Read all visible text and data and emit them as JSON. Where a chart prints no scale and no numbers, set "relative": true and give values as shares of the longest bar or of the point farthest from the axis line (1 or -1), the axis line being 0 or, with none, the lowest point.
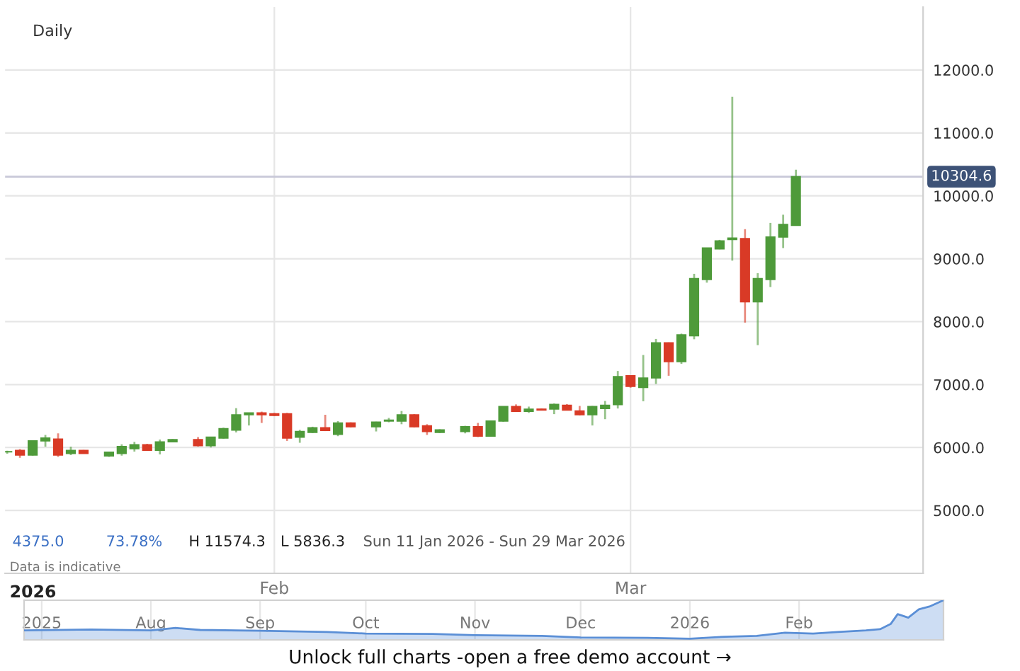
{
  "chart_data": [
    {
      "type": "candlestick",
      "title": "Daily",
      "x": [
        "2026-01-11",
        "2026-01-12",
        "2026-01-13",
        "2026-01-14",
        "2026-01-15",
        "2026-01-16",
        "2026-01-17",
        "2026-01-19",
        "2026-01-20",
        "2026-01-21",
        "2026-01-22",
        "2026-01-23",
        "2026-01-24",
        "2026-01-26",
        "2026-01-27",
        "2026-01-28",
        "2026-01-29",
        "2026-01-30",
        "2026-01-31",
        "2026-02-01",
        "2026-02-02",
        "2026-02-03",
        "2026-02-04",
        "2026-02-05",
        "2026-02-06",
        "2026-02-07",
        "2026-02-09",
        "2026-02-10",
        "2026-02-11",
        "2026-02-12",
        "2026-02-13",
        "2026-02-14",
        "2026-02-16",
        "2026-02-17",
        "2026-02-18",
        "2026-02-19",
        "2026-02-20",
        "2026-02-21",
        "2026-02-22",
        "2026-02-23",
        "2026-02-24",
        "2026-02-25",
        "2026-02-26",
        "2026-02-27",
        "2026-02-28",
        "2026-03-01",
        "2026-03-02",
        "2026-03-03",
        "2026-03-04",
        "2026-03-05",
        "2026-03-06",
        "2026-03-07",
        "2026-03-08",
        "2026-03-09",
        "2026-03-10",
        "2026-03-11",
        "2026-03-12",
        "2026-03-13",
        "2026-03-14"
      ],
      "ohlc": [
        [
          5929.6,
          5950,
          5900,
          5935
        ],
        [
          5955,
          5975,
          5836.3,
          5880
        ],
        [
          5880,
          6110,
          5870,
          6105
        ],
        [
          6105,
          6200,
          6015,
          6150
        ],
        [
          6135,
          6225,
          5850,
          5880
        ],
        [
          5905,
          6015,
          5880,
          5955
        ],
        [
          5955,
          5960,
          5900,
          5905
        ],
        [
          5865,
          5935,
          5850,
          5925
        ],
        [
          5905,
          6050,
          5870,
          6015
        ],
        [
          5980,
          6090,
          5935,
          6045
        ],
        [
          6045,
          6060,
          5950,
          5955
        ],
        [
          5955,
          6125,
          5890,
          6090
        ],
        [
          6090,
          6135,
          6085,
          6125
        ],
        [
          6125,
          6165,
          6015,
          6030
        ],
        [
          6030,
          6165,
          6000,
          6165
        ],
        [
          6150,
          6315,
          6140,
          6300
        ],
        [
          6275,
          6625,
          6240,
          6520
        ],
        [
          6520,
          6550,
          6350,
          6550
        ],
        [
          6550,
          6570,
          6390,
          6520
        ],
        [
          6535,
          6550,
          6500,
          6510
        ],
        [
          6535,
          6550,
          6105,
          6150
        ],
        [
          6165,
          6280,
          6075,
          6255
        ],
        [
          6240,
          6330,
          6230,
          6315
        ],
        [
          6315,
          6520,
          6260,
          6270
        ],
        [
          6210,
          6420,
          6180,
          6390
        ],
        [
          6390,
          6400,
          6320,
          6330
        ],
        [
          6330,
          6410,
          6255,
          6405
        ],
        [
          6420,
          6470,
          6400,
          6435
        ],
        [
          6420,
          6580,
          6370,
          6520
        ],
        [
          6520,
          6530,
          6320,
          6330
        ],
        [
          6345,
          6370,
          6200,
          6255
        ],
        [
          6240,
          6290,
          6230,
          6280
        ],
        [
          6255,
          6345,
          6225,
          6330
        ],
        [
          6330,
          6390,
          6165,
          6180
        ],
        [
          6180,
          6420,
          6170,
          6420
        ],
        [
          6420,
          6650,
          6410,
          6650
        ],
        [
          6650,
          6685,
          6570,
          6575
        ],
        [
          6575,
          6650,
          6550,
          6610
        ],
        [
          6610,
          6620,
          6590,
          6595
        ],
        [
          6610,
          6700,
          6530,
          6685
        ],
        [
          6670,
          6690,
          6590,
          6595
        ],
        [
          6580,
          6660,
          6510,
          6520
        ],
        [
          6520,
          6660,
          6350,
          6650
        ],
        [
          6620,
          6740,
          6450,
          6670
        ],
        [
          6680,
          7216,
          6620,
          7127
        ],
        [
          7142,
          7150,
          6950,
          6970
        ],
        [
          6955,
          7470,
          6735,
          7105
        ],
        [
          7105,
          7725,
          7010,
          7665
        ],
        [
          7665,
          7670,
          7140,
          7365
        ],
        [
          7365,
          7810,
          7330,
          7790
        ],
        [
          7775,
          8760,
          7720,
          8685
        ],
        [
          8670,
          9170,
          8620,
          9170
        ],
        [
          9155,
          9300,
          9150,
          9285
        ],
        [
          9305,
          11574.3,
          8970,
          9330
        ],
        [
          9320,
          9470,
          7985,
          8315
        ],
        [
          8315,
          8770,
          7627,
          8685
        ],
        [
          8670,
          9570,
          8550,
          9345
        ],
        [
          9345,
          9700,
          9170,
          9545
        ],
        [
          9530,
          10415,
          9530,
          10304.6
        ]
      ],
      "colors": [
        "#4e9a3a",
        "#d93a26",
        "#4e9a3a",
        "#4e9a3a",
        "#d93a26",
        "#4e9a3a",
        "#d93a26",
        "#4e9a3a",
        "#4e9a3a",
        "#4e9a3a",
        "#d93a26",
        "#4e9a3a",
        "#4e9a3a",
        "#d93a26",
        "#4e9a3a",
        "#4e9a3a",
        "#4e9a3a",
        "#4e9a3a",
        "#d93a26",
        "#d93a26",
        "#d93a26",
        "#4e9a3a",
        "#4e9a3a",
        "#d93a26",
        "#4e9a3a",
        "#d93a26",
        "#4e9a3a",
        "#4e9a3a",
        "#4e9a3a",
        "#d93a26",
        "#d93a26",
        "#4e9a3a",
        "#4e9a3a",
        "#d93a26",
        "#4e9a3a",
        "#4e9a3a",
        "#d93a26",
        "#4e9a3a",
        "#d93a26",
        "#4e9a3a",
        "#d93a26",
        "#d93a26",
        "#4e9a3a",
        "#4e9a3a",
        "#4e9a3a",
        "#d93a26",
        "#4e9a3a",
        "#4e9a3a",
        "#d93a26",
        "#4e9a3a",
        "#4e9a3a",
        "#4e9a3a",
        "#4e9a3a",
        "#4e9a3a",
        "#d93a26",
        "#4e9a3a",
        "#4e9a3a",
        "#4e9a3a",
        "#4e9a3a"
      ],
      "xlim": [
        "2026-01-10T20:00",
        "2026-03-24"
      ],
      "xticks": [
        {
          "value": "2026-02-01",
          "label": "Feb"
        },
        {
          "value": "2026-03-01",
          "label": "Mar"
        }
      ],
      "ylim": [
        4000,
        13000
      ],
      "yticks": [
        {
          "value": 5000,
          "label": "5000.0"
        },
        {
          "value": 6000,
          "label": "6000.0"
        },
        {
          "value": 7000,
          "label": "7000.0"
        },
        {
          "value": 8000,
          "label": "8000.0"
        },
        {
          "value": 9000,
          "label": "9000.0"
        },
        {
          "value": 10000,
          "label": "10000.0"
        },
        {
          "value": 11000,
          "label": "11000.0"
        },
        {
          "value": 12000,
          "label": "12000.0"
        }
      ],
      "grid": true,
      "ref_lines": [
        {
          "axis": "y",
          "value": 10304.6,
          "label": "10304.6",
          "color": "#c8c8d8"
        }
      ],
      "annotations": [
        "4375.0",
        "73.78%",
        "H 11574.3",
        "L 5836.3",
        "Sun 11 Jan 2026 - Sun 29 Mar 2026",
        "Data is indicative",
        "2026"
      ]
    },
    {
      "type": "area",
      "relative": true,
      "color": "#5b8fd6",
      "x": [
        "2025-06-26",
        "2025-07-15",
        "2025-08-01",
        "2025-08-08",
        "2025-08-15",
        "2025-09-01",
        "2025-09-20",
        "2025-10-01",
        "2025-10-20",
        "2025-11-01",
        "2025-11-20",
        "2025-12-01",
        "2025-12-20",
        "2026-01-01",
        "2026-01-11",
        "2026-01-20",
        "2026-01-28",
        "2026-02-05",
        "2026-02-12",
        "2026-02-20",
        "2026-02-24",
        "2026-02-27",
        "2026-03-01",
        "2026-03-04",
        "2026-03-07",
        "2026-03-10",
        "2026-03-14"
      ],
      "values": [
        0.24,
        0.26,
        0.24,
        0.3,
        0.25,
        0.23,
        0.2,
        0.16,
        0.15,
        0.12,
        0.1,
        0.06,
        0.05,
        0.03,
        0.08,
        0.1,
        0.18,
        0.16,
        0.2,
        0.24,
        0.27,
        0.4,
        0.65,
        0.56,
        0.77,
        0.84,
        1
      ],
      "xlim": [
        "2025-06-26",
        "2026-03-14"
      ],
      "xticks": [
        {
          "value": "2025-07-01",
          "label": "2025"
        },
        {
          "value": "2025-08-01",
          "label": "Aug"
        },
        {
          "value": "2025-09-01",
          "label": "Sep"
        },
        {
          "value": "2025-10-01",
          "label": "Oct"
        },
        {
          "value": "2025-11-01",
          "label": "Nov"
        },
        {
          "value": "2025-12-01",
          "label": "Dec"
        },
        {
          "value": "2026-01-01",
          "label": "2026"
        },
        {
          "value": "2026-02-01",
          "label": "Feb"
        }
      ],
      "grid": "x",
      "tick_labels": "x",
      "annotations": [
        "Unlock full charts -open a free demo account →"
      ]
    }
  ]
}
